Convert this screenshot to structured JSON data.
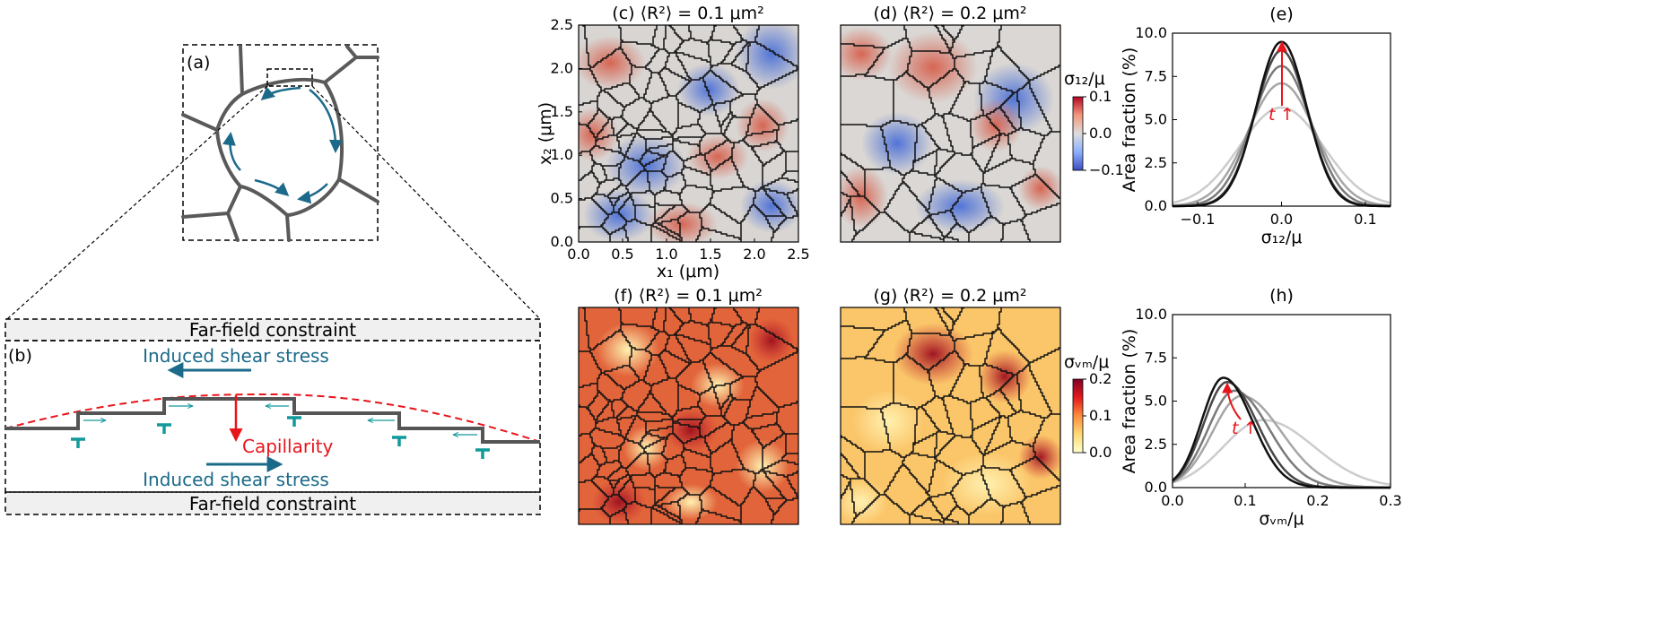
{
  "panel_a": {
    "label": "(a)"
  },
  "panel_b": {
    "label": "(b)",
    "far_field_top": "Far-field constraint",
    "far_field_bottom": "Far-field constraint",
    "shear_top": "Induced shear stress",
    "shear_bottom": "Induced shear stress",
    "capillarity": "Capillarity"
  },
  "maps": {
    "c_title": "(c) ⟨R²⟩ = 0.1 μm²",
    "d_title": "(d) ⟨R²⟩ = 0.2 μm²",
    "f_title": "(f) ⟨R²⟩ = 0.1 μm²",
    "g_title": "(g) ⟨R²⟩ = 0.2 μm²",
    "xlabel": "x₁ (μm)",
    "ylabel": "x₂ (μm)",
    "ticks": [
      "0.0",
      "0.5",
      "1.0",
      "1.5",
      "2.0",
      "2.5"
    ]
  },
  "colorbars": {
    "shear_label": "σ₁₂/μ",
    "shear_ticks": [
      "0.1",
      "0.0",
      "−0.1"
    ],
    "vm_label": "σᵥₘ/μ",
    "vm_ticks": [
      "0.2",
      "0.1",
      "0.0"
    ]
  },
  "colors": {
    "grain_boundary": "#5a5a5a",
    "teal": "#1b6a8a",
    "dislocation": "#12999a",
    "capillarity": "#e8141b"
  },
  "chart_data": [
    {
      "type": "line",
      "title": "(e)",
      "xlabel": "σ₁₂/μ",
      "ylabel": "Area fraction (%)",
      "xlim": [
        -0.13,
        0.13
      ],
      "ylim": [
        0,
        10
      ],
      "xticks": [
        "−0.1",
        "0.0",
        "0.1"
      ],
      "yticks": [
        "0.0",
        "2.5",
        "5.0",
        "7.5",
        "10.0"
      ],
      "annotation": "t",
      "series": [
        {
          "mu": 0.0,
          "sigma": 0.05,
          "peak": 5.7,
          "color": "#cccccc"
        },
        {
          "mu": 0.0,
          "sigma": 0.04,
          "peak": 7.1,
          "color": "#a6a6a6"
        },
        {
          "mu": 0.0,
          "sigma": 0.035,
          "peak": 8.1,
          "color": "#7a7a7a"
        },
        {
          "mu": 0.0,
          "sigma": 0.031,
          "peak": 9.0,
          "color": "#474747"
        },
        {
          "mu": 0.0,
          "sigma": 0.03,
          "peak": 9.5,
          "color": "#111111"
        }
      ]
    },
    {
      "type": "line",
      "title": "(h)",
      "xlabel": "σᵥₘ/μ",
      "ylabel": "Area fraction (%)",
      "xlim": [
        0,
        0.3
      ],
      "ylim": [
        0,
        10
      ],
      "xticks": [
        "0.0",
        "0.1",
        "0.2",
        "0.3"
      ],
      "yticks": [
        "0.0",
        "2.5",
        "5.0",
        "7.5",
        "10.0"
      ],
      "annotation": "t",
      "series": [
        {
          "mode": 0.125,
          "sl": 0.055,
          "sr": 0.07,
          "peak": 3.9,
          "color": "#cccccc"
        },
        {
          "mode": 0.095,
          "sl": 0.04,
          "sr": 0.055,
          "peak": 5.3,
          "color": "#a6a6a6"
        },
        {
          "mode": 0.085,
          "sl": 0.036,
          "sr": 0.048,
          "peak": 5.6,
          "color": "#7a7a7a"
        },
        {
          "mode": 0.075,
          "sl": 0.032,
          "sr": 0.042,
          "peak": 6.1,
          "color": "#474747"
        },
        {
          "mode": 0.07,
          "sl": 0.03,
          "sr": 0.04,
          "peak": 6.35,
          "color": "#111111"
        }
      ]
    }
  ]
}
